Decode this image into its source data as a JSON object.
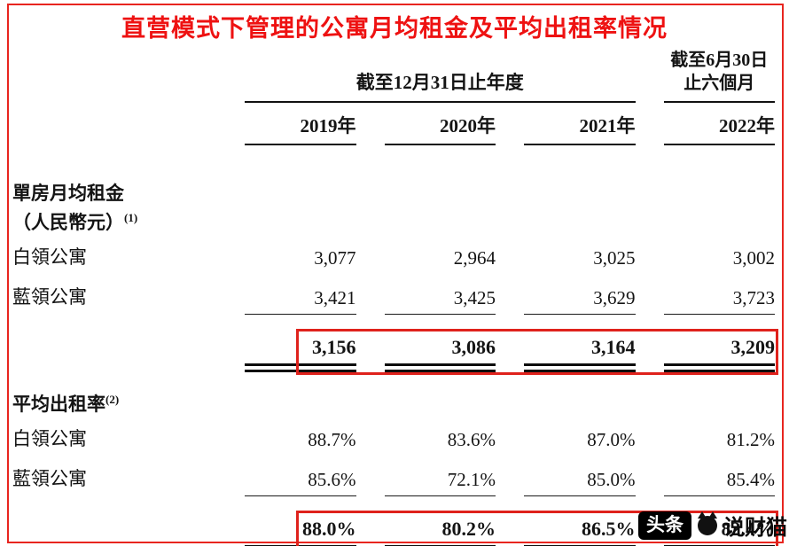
{
  "title": "直营模式下管理的公寓月均租金及平均出租率情况",
  "header": {
    "period_annual": "截至12月31日止年度",
    "period_interim_line1": "截至6月30日",
    "period_interim_line2": "止六個月",
    "years": [
      "2019年",
      "2020年",
      "2021年",
      "2022年"
    ]
  },
  "sections": [
    {
      "label_line1": "單房月均租金",
      "label_line2": "（人民幣元）",
      "sup": "(1)",
      "rows": [
        {
          "label": "白領公寓",
          "values": [
            "3,077",
            "2,964",
            "3,025",
            "3,002"
          ]
        },
        {
          "label": "藍領公寓",
          "values": [
            "3,421",
            "3,425",
            "3,629",
            "3,723"
          ]
        }
      ],
      "total": [
        "3,156",
        "3,086",
        "3,164",
        "3,209"
      ]
    },
    {
      "label_line1": "平均出租率",
      "sup": "(2)",
      "rows": [
        {
          "label": "白領公寓",
          "values": [
            "88.7%",
            "83.6%",
            "87.0%",
            "81.2%"
          ]
        },
        {
          "label": "藍領公寓",
          "values": [
            "85.6%",
            "72.1%",
            "85.0%",
            "85.4%"
          ]
        }
      ],
      "total": [
        "88.0%",
        "80.2%",
        "86.5%",
        "82.4%"
      ]
    }
  ],
  "watermark": {
    "badge": "头条",
    "name": "说财猫"
  },
  "colors": {
    "title_red": "#ee1212",
    "highlight_box_red": "#df221c",
    "frame_red": "#e8251f",
    "text": "#141414"
  }
}
